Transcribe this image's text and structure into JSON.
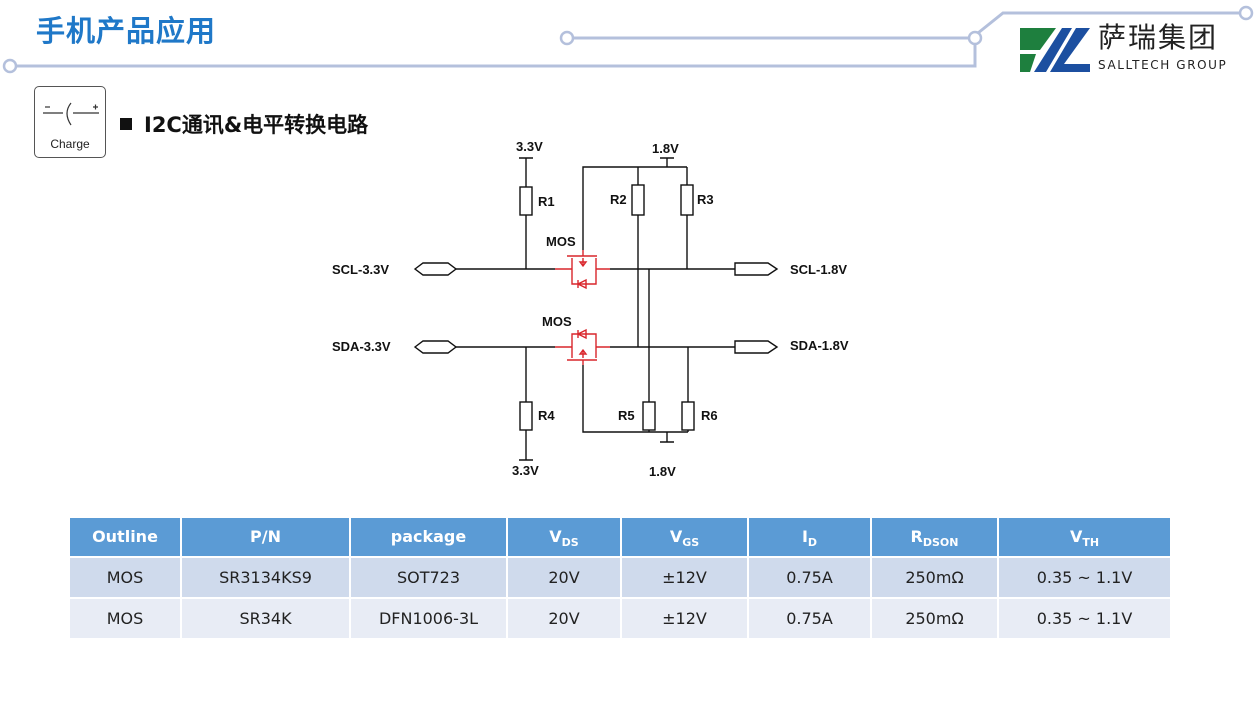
{
  "header": {
    "title": "手机产品应用",
    "logo_cn": "萨瑞集团",
    "logo_en": "SALLTECH GROUP"
  },
  "charge_icon": {
    "label": "Charge"
  },
  "section": {
    "title": "I2C通讯&电平转换电路"
  },
  "diagram": {
    "rail_3v3_top": "3.3V",
    "rail_1v8_top": "1.8V",
    "rail_3v3_bottom": "3.3V",
    "rail_1v8_bottom": "1.8V",
    "scl_left": "SCL-3.3V",
    "sda_left": "SDA-3.3V",
    "scl_right": "SCL-1.8V",
    "sda_right": "SDA-1.8V",
    "mos1": "MOS",
    "mos2": "MOS",
    "r1": "R1",
    "r2": "R2",
    "r3": "R3",
    "r4": "R4",
    "r5": "R5",
    "r6": "R6",
    "mos_color": "#d9262c"
  },
  "table": {
    "headers": [
      {
        "main": "Outline",
        "sub": ""
      },
      {
        "main": "P/N",
        "sub": ""
      },
      {
        "main": "package",
        "sub": ""
      },
      {
        "main": "V",
        "sub": "DS"
      },
      {
        "main": "V",
        "sub": "GS"
      },
      {
        "main": "I",
        "sub": "D"
      },
      {
        "main": "R",
        "sub": "DSON"
      },
      {
        "main": "V",
        "sub": "TH"
      }
    ],
    "rows": [
      [
        "MOS",
        "SR3134KS9",
        "SOT723",
        "20V",
        "±12V",
        "0.75A",
        "250mΩ",
        "0.35 ~ 1.1V"
      ],
      [
        "MOS",
        "SR34K",
        "DFN1006-3L",
        "20V",
        "±12V",
        "0.75A",
        "250mΩ",
        "0.35 ~ 1.1V"
      ]
    ]
  },
  "colors": {
    "title": "#1f78c8",
    "header_bg": "#5b9bd5",
    "row_odd": "#cfdaec",
    "row_even": "#e8ecf5",
    "logo_green": "#1e7f3e",
    "logo_blue": "#1c4fa0"
  }
}
